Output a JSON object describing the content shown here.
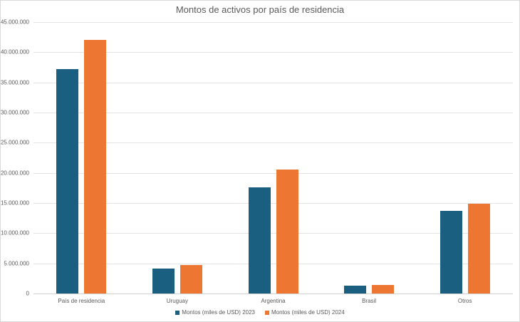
{
  "chart_data": {
    "type": "bar",
    "title": "Montos de activos por país de residencia",
    "xlabel": "",
    "ylabel": "",
    "categories": [
      "País de residencia",
      "Uruguay",
      "Argentina",
      "Brasil",
      "Otros"
    ],
    "series": [
      {
        "name": "Montos (miles de USD) 2023",
        "color": "#1a5e80",
        "values": [
          37200000,
          4100000,
          17600000,
          1300000,
          13700000
        ]
      },
      {
        "name": "Montos (miles de USD) 2024",
        "color": "#ee7633",
        "values": [
          42100000,
          4700000,
          20600000,
          1450000,
          14900000
        ]
      }
    ],
    "ylim": [
      0,
      45000000
    ],
    "yticks": [
      "0",
      "5.000.000",
      "10.000.000",
      "15.000.000",
      "20.000.000",
      "25.000.000",
      "30.000.000",
      "35.000.000",
      "40.000.000",
      "45.000.000"
    ],
    "grid": true,
    "legend_position": "bottom"
  }
}
